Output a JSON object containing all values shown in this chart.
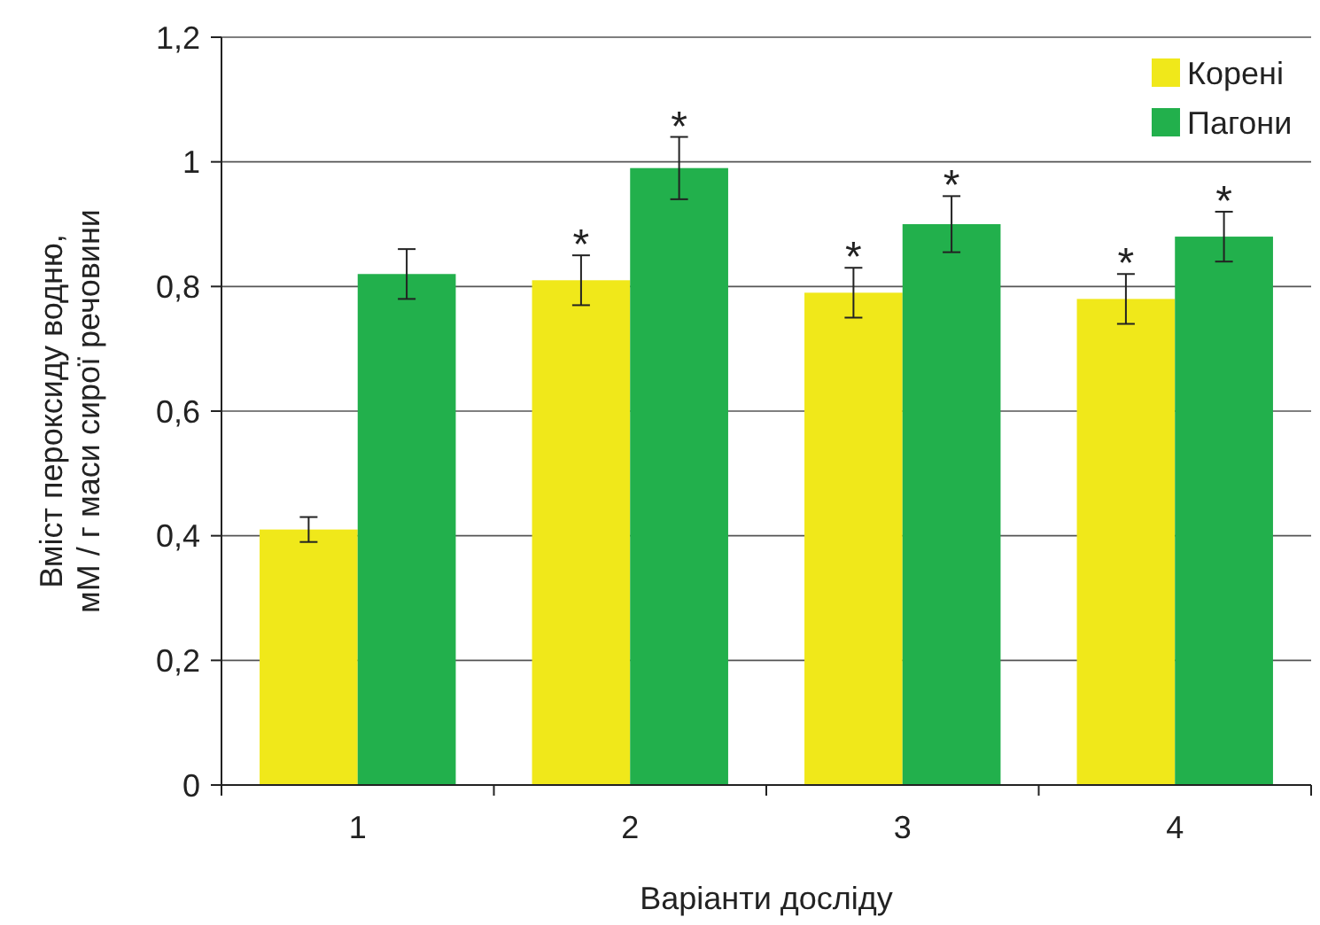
{
  "chart_data": {
    "type": "bar",
    "xlabel": "Варіанти досліду",
    "ylabel": "Вміст пероксиду водню,\nмМ / г маси сирої речовини",
    "categories": [
      "1",
      "2",
      "3",
      "4"
    ],
    "series": [
      {
        "name": "Корені",
        "color": "#f0e81a",
        "values": [
          0.41,
          0.81,
          0.79,
          0.78
        ],
        "errors": [
          0.02,
          0.04,
          0.04,
          0.04
        ]
      },
      {
        "name": "Пагони",
        "color": "#22b04c",
        "values": [
          0.82,
          0.99,
          0.9,
          0.88
        ],
        "errors": [
          0.04,
          0.05,
          0.045,
          0.04
        ]
      }
    ],
    "ylim": [
      0,
      1.2
    ],
    "yticks": [
      0,
      {
        "value": 0.2,
        "label": "0,2"
      },
      {
        "value": 0.4,
        "label": "0,4"
      },
      {
        "value": 0.6,
        "label": "0,6"
      },
      {
        "value": 0.8,
        "label": "0,8"
      },
      1,
      {
        "value": 1.2,
        "label": "1,2"
      }
    ],
    "grid": "y",
    "legend": "top right",
    "annotations": [
      {
        "text": "*",
        "x": "2",
        "y": 0.81
      },
      {
        "text": "*",
        "x": "2",
        "y": 0.99
      },
      {
        "text": "*",
        "x": "3",
        "y": 0.79
      },
      {
        "text": "*",
        "x": "3",
        "y": 0.9
      },
      {
        "text": "*",
        "x": "4",
        "y": 0.78
      },
      {
        "text": "*",
        "x": "4",
        "y": 0.88
      }
    ]
  }
}
